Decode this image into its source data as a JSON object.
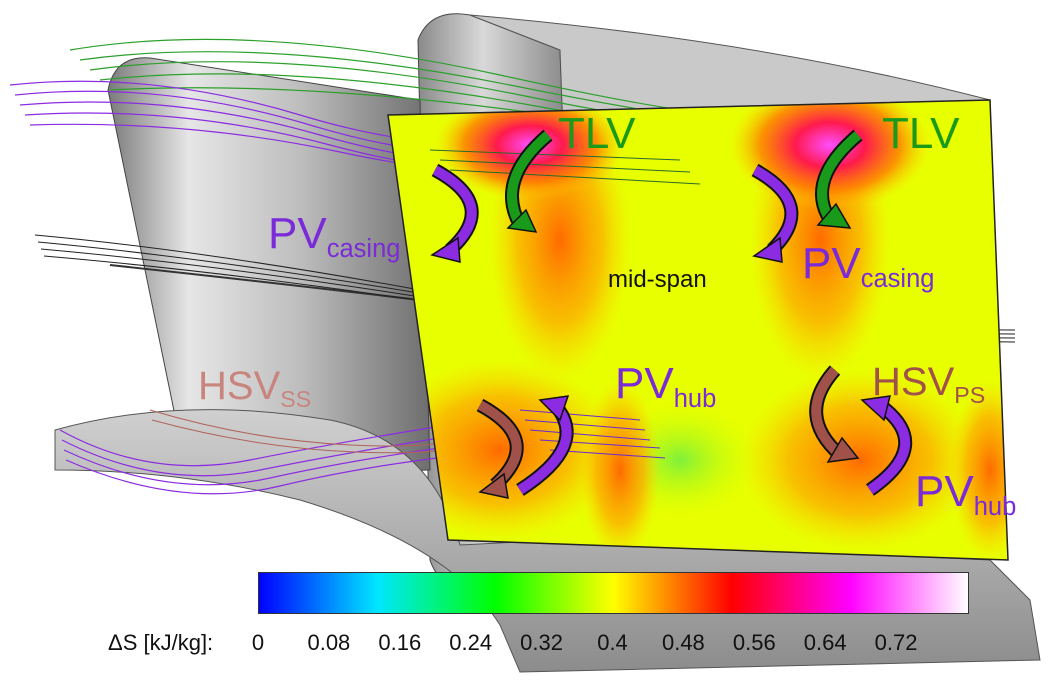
{
  "labels": {
    "tlv_left": "TLV",
    "tlv_right": "TLV",
    "pv_casing_left_main": "PV",
    "pv_casing_left_sub": "casing",
    "pv_casing_right_main": "PV",
    "pv_casing_right_sub": "casing",
    "mid_span": "mid-span",
    "hsv_ss_main": "HSV",
    "hsv_ss_sub": "SS",
    "pv_hub_left_main": "PV",
    "pv_hub_left_sub": "hub",
    "hsv_ps_main": "HSV",
    "hsv_ps_sub": "PS",
    "pv_hub_right_main": "PV",
    "pv_hub_right_sub": "hub"
  },
  "colorbar": {
    "title": "ΔS [kJ/kg]:",
    "ticks": [
      "0",
      "0.08",
      "0.16",
      "0.24",
      "0.32",
      "0.4",
      "0.48",
      "0.56",
      "0.64",
      "0.72"
    ],
    "range": [
      0,
      0.8
    ],
    "colors": [
      "#0000ff",
      "#00e6ff",
      "#00ff00",
      "#ffff00",
      "#ff0000",
      "#ff00ff",
      "#ffffff"
    ]
  },
  "colors": {
    "tlv": "#1a9a1a",
    "pv": "#7a2ad8",
    "hsv": "#a0524a",
    "blade": "#c8c8c8"
  }
}
